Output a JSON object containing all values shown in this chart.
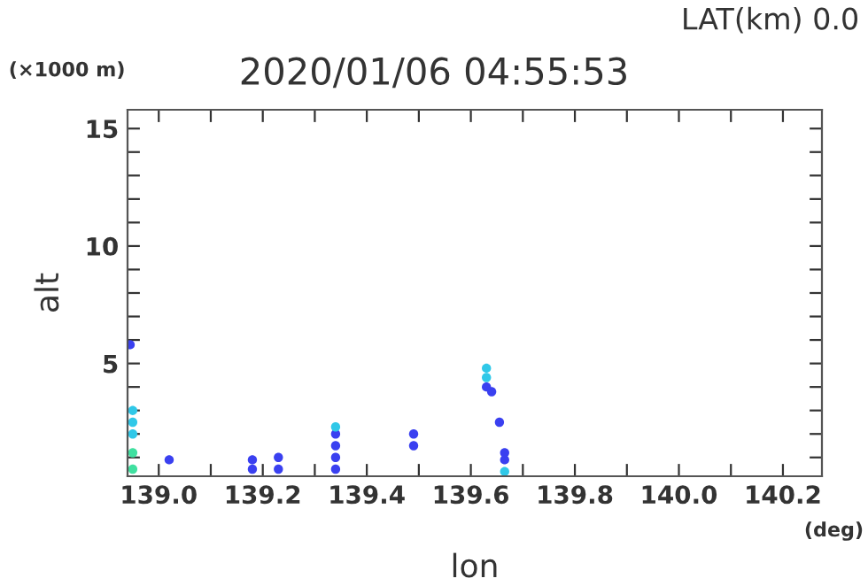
{
  "chart_data": {
    "type": "scatter",
    "title": "2020/01/06 04:55:53",
    "xlabel": "lon",
    "ylabel": "alt",
    "annotations": [
      "LAT(km) 0.0",
      "(×1000 m)",
      "(deg)"
    ],
    "series": [
      {
        "color": "#3a40f0",
        "x": [
          138.945,
          139.02,
          139.18,
          139.18,
          139.23,
          139.23,
          139.34,
          139.34,
          139.34,
          139.34,
          139.49,
          139.49,
          139.63,
          139.64,
          139.655,
          139.665,
          139.665
        ],
        "values": [
          5.8,
          0.9,
          0.5,
          0.9,
          0.5,
          1.0,
          0.5,
          1.0,
          1.5,
          2.0,
          1.5,
          2.0,
          4.0,
          3.8,
          2.5,
          0.9,
          1.2
        ]
      },
      {
        "color": "#30c8e8",
        "x": [
          138.95,
          138.95,
          138.95,
          139.34,
          139.63,
          139.63,
          139.665
        ],
        "values": [
          2.0,
          2.5,
          3.0,
          2.3,
          4.4,
          4.8,
          0.4
        ]
      },
      {
        "color": "#40e0a0",
        "x": [
          138.95,
          138.95
        ],
        "values": [
          0.5,
          1.2
        ]
      }
    ],
    "marker": "circle",
    "xlim": [
      138.94,
      140.275
    ],
    "ylim": [
      0.2,
      15.8
    ],
    "xticks": [
      {
        "value": 139.0,
        "label": "139.0"
      },
      {
        "value": 139.1,
        "label": null
      },
      {
        "value": 139.2,
        "label": "139.2"
      },
      {
        "value": 139.3,
        "label": null
      },
      {
        "value": 139.4,
        "label": "139.4"
      },
      {
        "value": 139.5,
        "label": null
      },
      {
        "value": 139.6,
        "label": "139.6"
      },
      {
        "value": 139.7,
        "label": null
      },
      {
        "value": 139.8,
        "label": "139.8"
      },
      {
        "value": 139.9,
        "label": null
      },
      {
        "value": 140.0,
        "label": "140.0"
      },
      {
        "value": 140.1,
        "label": null
      },
      {
        "value": 140.2,
        "label": "140.2"
      }
    ],
    "yticks": [
      {
        "value": 1,
        "label": null
      },
      {
        "value": 2,
        "label": null
      },
      {
        "value": 3,
        "label": null
      },
      {
        "value": 4,
        "label": null
      },
      5,
      {
        "value": 6,
        "label": null
      },
      {
        "value": 7,
        "label": null
      },
      {
        "value": 8,
        "label": null
      },
      {
        "value": 9,
        "label": null
      },
      10,
      {
        "value": 11,
        "label": null
      },
      {
        "value": 12,
        "label": null
      },
      {
        "value": 13,
        "label": null
      },
      {
        "value": 14,
        "label": null
      },
      15
    ],
    "grid": false,
    "legend": false
  }
}
